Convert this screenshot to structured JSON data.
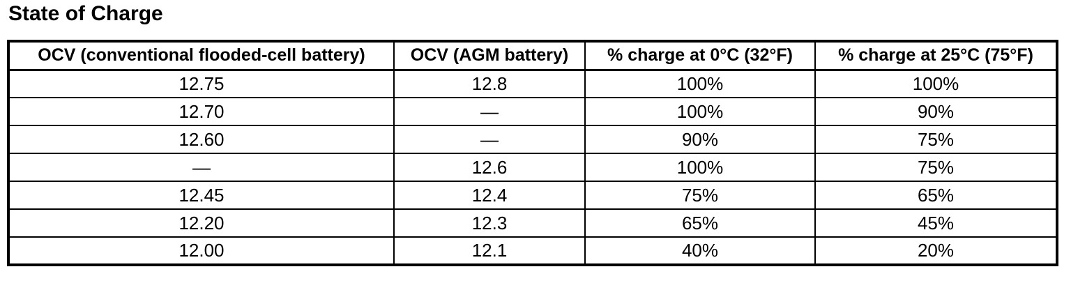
{
  "title": "State of Charge",
  "table": {
    "columns": [
      "OCV (conventional flooded-cell battery)",
      "OCV (AGM battery)",
      "% charge at 0°C (32°F)",
      "% charge at 25°C (75°F)"
    ],
    "rows": [
      [
        "12.75",
        "12.8",
        "100%",
        "100%"
      ],
      [
        "12.70",
        "—",
        "100%",
        "90%"
      ],
      [
        "12.60",
        "—",
        "90%",
        "75%"
      ],
      [
        "—",
        "12.6",
        "100%",
        "75%"
      ],
      [
        "12.45",
        "12.4",
        "75%",
        "65%"
      ],
      [
        "12.20",
        "12.3",
        "65%",
        "45%"
      ],
      [
        "12.00",
        "12.1",
        "40%",
        "20%"
      ]
    ]
  },
  "colors": {
    "text": "#000000",
    "border": "#000000",
    "background": "#ffffff"
  }
}
